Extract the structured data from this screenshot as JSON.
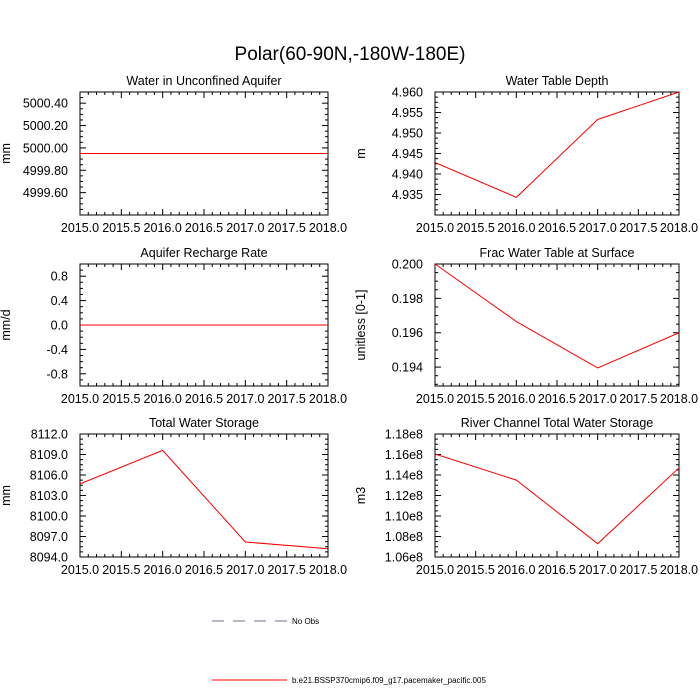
{
  "figure_title": "Polar(60-90N,-180W-180E)",
  "legend": {
    "items": [
      {
        "label": "No Obs",
        "style": "dashed",
        "color": "#6f6f8f"
      },
      {
        "label": "b.e21.BSSP370cmip6.f09_g17.pacemaker_pacific.005",
        "style": "solid",
        "color": "#ff0000"
      }
    ]
  },
  "chart_data": [
    {
      "type": "line",
      "title": "Water in Unconfined Aquifer",
      "xlabel": "",
      "ylabel": "mm",
      "xlim": [
        2015.0,
        2018.0
      ],
      "ylim": [
        4999.4,
        5000.5
      ],
      "xticks": [
        2015.0,
        2015.5,
        2016.0,
        2016.5,
        2017.0,
        2017.5,
        2018.0
      ],
      "xtick_labels": [
        "2015.0",
        "2015.5",
        "2016.0",
        "2016.5",
        "2017.0",
        "2017.5",
        "2018.0"
      ],
      "yticks": [
        4999.6,
        4999.8,
        5000.0,
        5000.2,
        5000.4
      ],
      "ytick_labels": [
        "4999.60",
        "4999.80",
        "5000.00",
        "5000.20",
        "5000.40"
      ],
      "series": [
        {
          "x": [
            2015,
            2016,
            2017,
            2018
          ],
          "y": [
            4999.95,
            4999.95,
            4999.95,
            4999.95
          ]
        }
      ]
    },
    {
      "type": "line",
      "title": "Water Table Depth",
      "xlabel": "",
      "ylabel": "m",
      "xlim": [
        2015.0,
        2018.0
      ],
      "ylim": [
        4.93,
        4.96
      ],
      "xticks": [
        2015.0,
        2015.5,
        2016.0,
        2016.5,
        2017.0,
        2017.5,
        2018.0
      ],
      "xtick_labels": [
        "2015.0",
        "2015.5",
        "2016.0",
        "2016.5",
        "2017.0",
        "2017.5",
        "2018.0"
      ],
      "yticks": [
        4.935,
        4.94,
        4.945,
        4.95,
        4.955,
        4.96
      ],
      "ytick_labels": [
        "4.935",
        "4.940",
        "4.945",
        "4.950",
        "4.955",
        "4.960"
      ],
      "series": [
        {
          "x": [
            2015,
            2016,
            2017,
            2018
          ],
          "y": [
            4.9428,
            4.9343,
            4.9533,
            4.96
          ]
        }
      ]
    },
    {
      "type": "line",
      "title": "Aquifer Recharge Rate",
      "xlabel": "",
      "ylabel": "mm/d",
      "xlim": [
        2015.0,
        2018.0
      ],
      "ylim": [
        -1.0,
        1.0
      ],
      "xticks": [
        2015.0,
        2015.5,
        2016.0,
        2016.5,
        2017.0,
        2017.5,
        2018.0
      ],
      "xtick_labels": [
        "2015.0",
        "2015.5",
        "2016.0",
        "2016.5",
        "2017.0",
        "2017.5",
        "2018.0"
      ],
      "yticks": [
        -0.8,
        -0.4,
        0.0,
        0.4,
        0.8
      ],
      "ytick_labels": [
        "-0.8",
        "-0.4",
        "0.0",
        "0.4",
        "0.8"
      ],
      "series": [
        {
          "x": [
            2015,
            2016,
            2017,
            2018
          ],
          "y": [
            0.0,
            0.0,
            0.0,
            0.0
          ]
        }
      ]
    },
    {
      "type": "line",
      "title": "Frac Water Table at Surface",
      "xlabel": "",
      "ylabel": "unitless [0-1]",
      "xlim": [
        2015.0,
        2018.0
      ],
      "ylim": [
        0.1929,
        0.2
      ],
      "xticks": [
        2015.0,
        2015.5,
        2016.0,
        2016.5,
        2017.0,
        2017.5,
        2018.0
      ],
      "xtick_labels": [
        "2015.0",
        "2015.5",
        "2016.0",
        "2016.5",
        "2017.0",
        "2017.5",
        "2018.0"
      ],
      "yticks": [
        0.194,
        0.196,
        0.198,
        0.2
      ],
      "ytick_labels": [
        "0.194",
        "0.196",
        "0.198",
        "0.200"
      ],
      "series": [
        {
          "x": [
            2015,
            2016,
            2017,
            2018
          ],
          "y": [
            0.2,
            0.19665,
            0.19395,
            0.196
          ]
        }
      ]
    },
    {
      "type": "line",
      "title": "Total Water Storage",
      "xlabel": "",
      "ylabel": "mm",
      "xlim": [
        2015.0,
        2018.0
      ],
      "ylim": [
        8094.0,
        8112.0
      ],
      "xticks": [
        2015.0,
        2015.5,
        2016.0,
        2016.5,
        2017.0,
        2017.5,
        2018.0
      ],
      "xtick_labels": [
        "2015.0",
        "2015.5",
        "2016.0",
        "2016.5",
        "2017.0",
        "2017.5",
        "2018.0"
      ],
      "yticks": [
        8094.0,
        8097.0,
        8100.0,
        8103.0,
        8106.0,
        8109.0,
        8112.0
      ],
      "ytick_labels": [
        "8094.0",
        "8097.0",
        "8100.0",
        "8103.0",
        "8106.0",
        "8109.0",
        "8112.0"
      ],
      "series": [
        {
          "x": [
            2015,
            2016,
            2017,
            2018
          ],
          "y": [
            8104.7,
            8109.6,
            8096.2,
            8095.2
          ]
        }
      ]
    },
    {
      "type": "line",
      "title": "River Channel Total Water Storage",
      "xlabel": "",
      "ylabel": "m3",
      "xlim": [
        2015.0,
        2018.0
      ],
      "ylim": [
        106000000.0,
        118000000.0
      ],
      "xticks": [
        2015.0,
        2015.5,
        2016.0,
        2016.5,
        2017.0,
        2017.5,
        2018.0
      ],
      "xtick_labels": [
        "2015.0",
        "2015.5",
        "2016.0",
        "2016.5",
        "2017.0",
        "2017.5",
        "2018.0"
      ],
      "yticks": [
        106000000.0,
        108000000.0,
        110000000.0,
        112000000.0,
        114000000.0,
        116000000.0,
        118000000.0
      ],
      "ytick_labels": [
        "1.06e8",
        "1.08e8",
        "1.10e8",
        "1.12e8",
        "1.14e8",
        "1.16e8",
        "1.18e8"
      ],
      "series": [
        {
          "x": [
            2015,
            2016,
            2017,
            2018
          ],
          "y": [
            116050000.0,
            113500000.0,
            107300000.0,
            114700000.0
          ]
        }
      ]
    }
  ]
}
